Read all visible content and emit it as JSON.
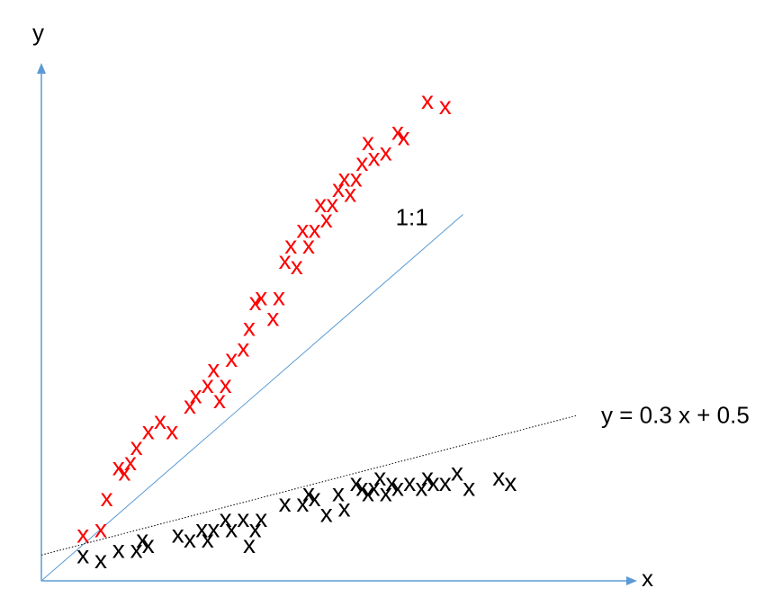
{
  "chart_data": {
    "type": "scatter",
    "title": "",
    "xlabel": "x",
    "ylabel": "y",
    "xlim": [
      0,
      10
    ],
    "ylim": [
      0,
      10
    ],
    "grid": false,
    "legend": "none",
    "lines": [
      {
        "label": "1:1",
        "slope": 1.0,
        "intercept": 0.0,
        "x_range": [
          0,
          7.1
        ],
        "style": "solid",
        "color": "#5B9BD5"
      },
      {
        "label": "y = 0.3 x + 0.5",
        "slope": 0.3,
        "intercept": 0.5,
        "x_range": [
          0,
          9.0
        ],
        "style": "dotted",
        "color": "#000000"
      }
    ],
    "series": [
      {
        "color": "#FF0000",
        "marker": "x",
        "x": [
          0.7,
          1.0,
          1.1,
          1.3,
          1.4,
          1.5,
          1.6,
          1.8,
          2.0,
          2.2,
          2.5,
          2.6,
          2.8,
          2.9,
          3.0,
          3.1,
          3.2,
          3.4,
          3.5,
          3.6,
          3.7,
          3.9,
          4.0,
          4.1,
          4.2,
          4.3,
          4.4,
          4.5,
          4.6,
          4.7,
          4.8,
          4.9,
          5.0,
          5.1,
          5.2,
          5.3,
          5.4,
          5.5,
          5.6,
          5.8,
          6.0,
          6.1,
          6.5,
          6.8
        ],
        "y": [
          0.9,
          1.0,
          1.6,
          2.2,
          2.1,
          2.3,
          2.6,
          2.9,
          3.1,
          2.9,
          3.4,
          3.6,
          3.8,
          4.1,
          3.5,
          3.8,
          4.3,
          4.5,
          4.9,
          5.4,
          5.5,
          5.1,
          5.5,
          6.2,
          6.5,
          6.1,
          6.8,
          6.5,
          6.8,
          7.3,
          7.0,
          7.3,
          7.6,
          7.8,
          7.5,
          7.8,
          8.1,
          8.5,
          8.2,
          8.3,
          8.7,
          8.6,
          9.3,
          9.2
        ]
      },
      {
        "color": "#000000",
        "marker": "x",
        "x": [
          0.7,
          1.0,
          1.3,
          1.6,
          1.7,
          1.8,
          2.3,
          2.5,
          2.7,
          2.8,
          2.9,
          3.1,
          3.2,
          3.4,
          3.5,
          3.6,
          3.7,
          4.1,
          4.4,
          4.5,
          4.6,
          4.8,
          5.0,
          5.1,
          5.3,
          5.4,
          5.5,
          5.6,
          5.7,
          5.8,
          5.9,
          6.0,
          6.2,
          6.4,
          6.5,
          6.6,
          6.8,
          7.0,
          7.2,
          7.7,
          7.9
        ],
        "y": [
          0.5,
          0.4,
          0.6,
          0.6,
          0.8,
          0.7,
          0.9,
          0.8,
          1.0,
          0.8,
          1.0,
          1.2,
          1.0,
          1.2,
          0.7,
          1.0,
          1.2,
          1.5,
          1.5,
          1.7,
          1.6,
          1.3,
          1.7,
          1.4,
          1.9,
          1.8,
          1.7,
          1.8,
          2.0,
          1.7,
          1.9,
          1.8,
          1.9,
          1.8,
          2.0,
          1.9,
          1.9,
          2.1,
          1.8,
          2.0,
          1.9
        ]
      }
    ]
  }
}
